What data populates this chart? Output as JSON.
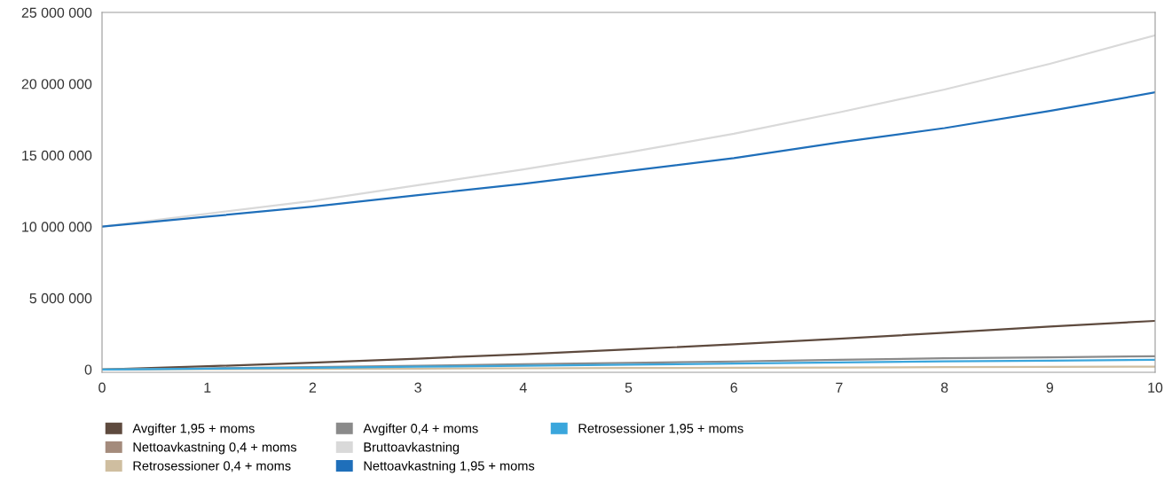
{
  "chart_data": {
    "type": "line",
    "x": [
      0,
      1,
      2,
      3,
      4,
      5,
      6,
      7,
      8,
      9,
      10
    ],
    "series": [
      {
        "name": "Avgifter 1,95 + moms",
        "color": "#5e4a3e",
        "values": [
          0,
          220000,
          480000,
          760000,
          1070000,
          1400000,
          1760000,
          2150000,
          2570000,
          3000000,
          3400000
        ]
      },
      {
        "name": "Nettoavkastning 0,4 + moms",
        "color": "#a48b7c",
        "values": [
          null,
          null,
          null,
          null,
          null,
          null,
          null,
          null,
          null,
          null,
          null
        ]
      },
      {
        "name": "Retrosessioner 0,4 + moms",
        "color": "#cfbea0",
        "values": [
          0,
          20000,
          40000,
          60000,
          80000,
          100000,
          120000,
          140000,
          160000,
          180000,
          200000
        ]
      },
      {
        "name": "Avgifter 0,4 + moms",
        "color": "#8a8a8a",
        "values": [
          0,
          80000,
          170000,
          260000,
          360000,
          460000,
          560000,
          670000,
          780000,
          850000,
          930000
        ]
      },
      {
        "name": "Bruttoavkastning",
        "color": "#d9d9d9",
        "values": [
          10000000,
          10900000,
          11800000,
          12900000,
          14000000,
          15200000,
          16500000,
          18000000,
          19600000,
          21400000,
          23400000
        ]
      },
      {
        "name": "Nettoavkastning 1,95 + moms",
        "color": "#1f6fba",
        "values": [
          10000000,
          10700000,
          11400000,
          12200000,
          13000000,
          13900000,
          14800000,
          15900000,
          16900000,
          18100000,
          19400000
        ]
      },
      {
        "name": "Retrosessioner 1,95 + moms",
        "color": "#3aa6dc",
        "values": [
          0,
          60000,
          120000,
          190000,
          260000,
          330000,
          410000,
          490000,
          570000,
          620000,
          680000
        ]
      }
    ],
    "xlim": [
      0,
      10
    ],
    "xticks": [
      0,
      1,
      2,
      3,
      4,
      5,
      6,
      7,
      8,
      9,
      10
    ],
    "ylim": [
      -200000,
      25000000
    ],
    "yticks": [
      {
        "value": 0,
        "label": "0"
      },
      {
        "value": 5000000,
        "label": "5 000 000"
      },
      {
        "value": 10000000,
        "label": "10 000 000"
      },
      {
        "value": 15000000,
        "label": "15 000 000"
      },
      {
        "value": 20000000,
        "label": "20 000 000"
      },
      {
        "value": 25000000,
        "label": "25 000 000"
      }
    ],
    "grid": false,
    "legend": "bottom",
    "marker": "none",
    "line_style": "solid"
  }
}
